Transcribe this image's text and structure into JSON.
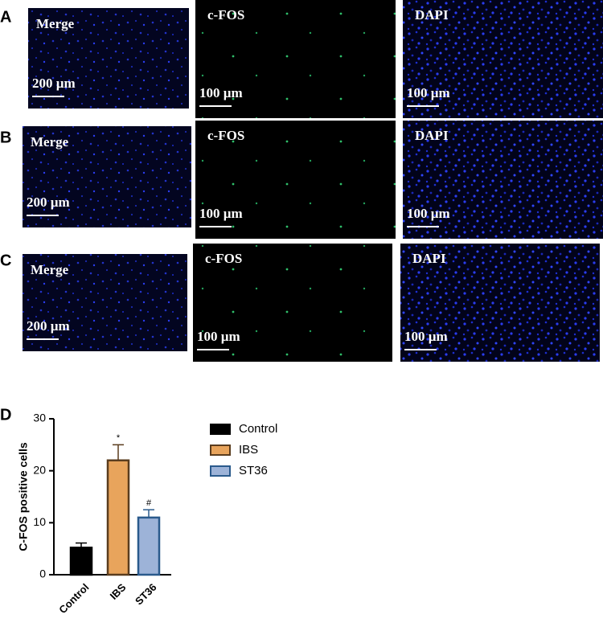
{
  "panels": [
    {
      "label": "A",
      "images": [
        {
          "title": "Merge",
          "scale": "200 µm"
        },
        {
          "title": "c-FOS",
          "scale": "100 µm"
        },
        {
          "title": "DAPI",
          "scale": "100 µm"
        }
      ]
    },
    {
      "label": "B",
      "images": [
        {
          "title": "Merge",
          "scale": "200 µm"
        },
        {
          "title": "c-FOS",
          "scale": "100 µm"
        },
        {
          "title": "DAPI",
          "scale": "100 µm"
        }
      ]
    },
    {
      "label": "C",
      "images": [
        {
          "title": "Merge",
          "scale": "200 µm"
        },
        {
          "title": "c-FOS",
          "scale": "100 µm"
        },
        {
          "title": "DAPI",
          "scale": "100 µm"
        }
      ]
    }
  ],
  "chart_data": {
    "type": "bar",
    "label": "D",
    "y_label": "C-FOS positive cells",
    "categories": [
      "Control",
      "IBS",
      "ST36"
    ],
    "values": [
      5.2,
      22,
      11
    ],
    "errors": [
      0.9,
      3,
      1.5
    ],
    "significance": [
      null,
      "*",
      "#"
    ],
    "colors": [
      "#000000",
      "#e8a45c",
      "#9db3d8"
    ],
    "edge_colors": [
      "#000000",
      "#5a3c1e",
      "#2a5a8c"
    ],
    "ylim": [
      0,
      30
    ],
    "yticks": [
      0,
      10,
      20,
      30
    ],
    "legend": "right"
  }
}
